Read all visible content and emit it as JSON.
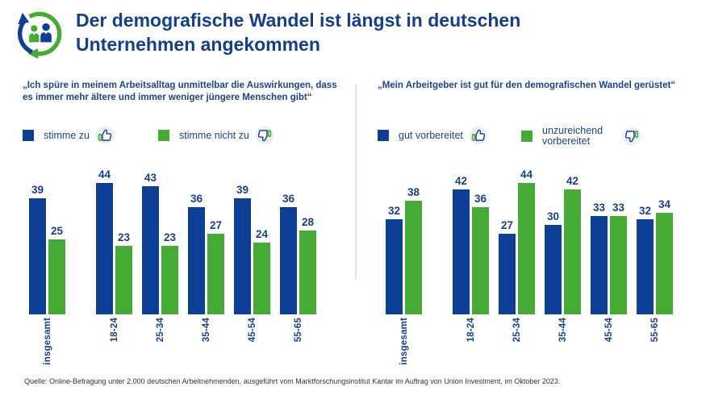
{
  "header": {
    "title_line1": "Der demografische Wandel ist längst in deutschen",
    "title_line2": "Unternehmen angekommen",
    "logo": "demographic-change-logo"
  },
  "colors": {
    "blue": "#0D3F96",
    "green": "#46AB35",
    "text_blue": "#1A4390",
    "icon_circle_bg": "#E9EFF6",
    "divider": "#E3E3E3",
    "footer_text": "#333333"
  },
  "categories": [
    "insgesamt",
    "18-24",
    "25-34",
    "35-44",
    "45-54",
    "55-65"
  ],
  "panels": [
    {
      "question": "„Ich spüre in meinem Arbeitsalltag unmittelbar die Auswirkungen, dass es immer mehr ältere und immer weniger jüngere Menschen gibt“",
      "legend": [
        {
          "label": "stimme zu",
          "swatch": "blue",
          "icon": "thumbs-up-icon"
        },
        {
          "label": "stimme nicht zu",
          "swatch": "green",
          "icon": "thumbs-down-icon"
        }
      ]
    },
    {
      "question": "„Mein Arbeitgeber ist gut für den demografischen Wandel gerüstet“",
      "legend": [
        {
          "label": "gut vorbereitet",
          "swatch": "blue",
          "icon": "thumbs-up-icon"
        },
        {
          "label": "unzureichend vorbereitet",
          "swatch": "green",
          "icon": "thumbs-down-icon"
        }
      ]
    }
  ],
  "chart_data": [
    {
      "type": "bar",
      "title": "„Ich spüre in meinem Arbeitsalltag unmittelbar die Auswirkungen, dass es immer mehr ältere und immer weniger jüngere Menschen gibt“",
      "categories": [
        "insgesamt",
        "18-24",
        "25-34",
        "35-44",
        "45-54",
        "55-65"
      ],
      "series": [
        {
          "name": "stimme zu",
          "color": "#0D3F96",
          "values": [
            39,
            44,
            43,
            36,
            39,
            36
          ]
        },
        {
          "name": "stimme nicht zu",
          "color": "#46AB35",
          "values": [
            25,
            23,
            23,
            27,
            24,
            28
          ]
        }
      ],
      "ylim": [
        0,
        46
      ],
      "grid": false,
      "axes_hidden": true,
      "value_labels": true,
      "legend_position": "top"
    },
    {
      "type": "bar",
      "title": "„Mein Arbeitgeber ist gut für den demografischen Wandel gerüstet“",
      "categories": [
        "insgesamt",
        "18-24",
        "25-34",
        "35-44",
        "45-54",
        "55-65"
      ],
      "series": [
        {
          "name": "gut vorbereitet",
          "color": "#0D3F96",
          "values": [
            32,
            42,
            27,
            30,
            33,
            32
          ]
        },
        {
          "name": "unzureichend vorbereitet",
          "color": "#46AB35",
          "values": [
            38,
            36,
            44,
            42,
            33,
            34
          ]
        }
      ],
      "ylim": [
        0,
        46
      ],
      "grid": false,
      "axes_hidden": true,
      "value_labels": true,
      "legend_position": "top"
    }
  ],
  "footer": {
    "source": "Quelle: Online-Befragung unter 2.000 deutschen Arbeitnehmenden, ausgeführt vom Marktforschungsinstitut Kantar im Auftrag von Union Investment, im Oktober 2023."
  }
}
